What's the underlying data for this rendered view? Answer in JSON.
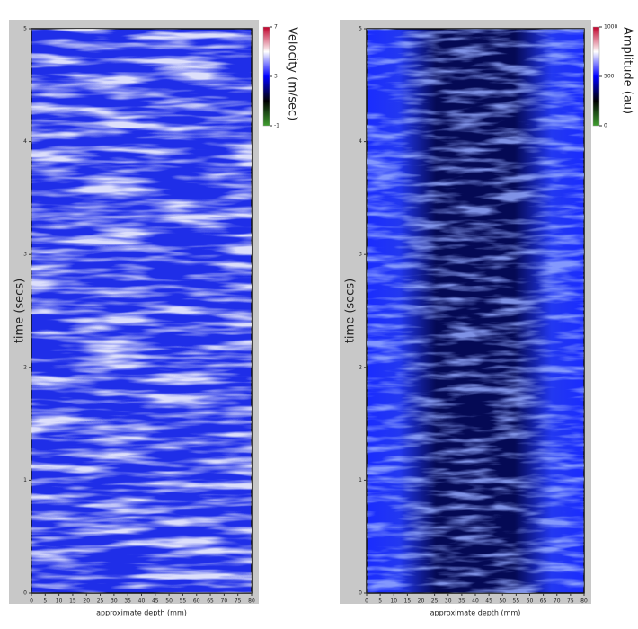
{
  "chart_data": [
    {
      "type": "heatmap",
      "ylabel": "time (secs)",
      "xlabel": "approximate depth (mm)",
      "xlim": [
        0,
        80
      ],
      "xticks": [
        0,
        5,
        10,
        15,
        20,
        25,
        30,
        35,
        40,
        45,
        50,
        55,
        60,
        65,
        70,
        75,
        80
      ],
      "ylim": [
        0,
        5
      ],
      "yticks": [
        0,
        1,
        2,
        3,
        4,
        5
      ],
      "colorbar": {
        "label": "Velocity (m/sec)",
        "lim": [
          -1,
          7
        ],
        "ticks": [
          -1,
          3,
          7
        ],
        "colors": [
          "#3fa02f",
          "#000000",
          "#0000ff",
          "#ffffff",
          "#c0002a"
        ]
      }
    },
    {
      "type": "heatmap",
      "ylabel": "time (secs)",
      "xlabel": "approximate depth (mm)",
      "xlim": [
        0,
        80
      ],
      "xticks": [
        0,
        5,
        10,
        15,
        20,
        25,
        30,
        35,
        40,
        45,
        50,
        55,
        60,
        65,
        70,
        75,
        80
      ],
      "ylim": [
        0,
        5
      ],
      "yticks": [
        0,
        1,
        2,
        3,
        4,
        5
      ],
      "colorbar": {
        "label": "Amplitude (au)",
        "lim": [
          0,
          1000
        ],
        "ticks": [
          0,
          500,
          1000
        ],
        "colors": [
          "#3fa02f",
          "#000000",
          "#0000ff",
          "#ffffff",
          "#c0002a"
        ]
      }
    }
  ]
}
